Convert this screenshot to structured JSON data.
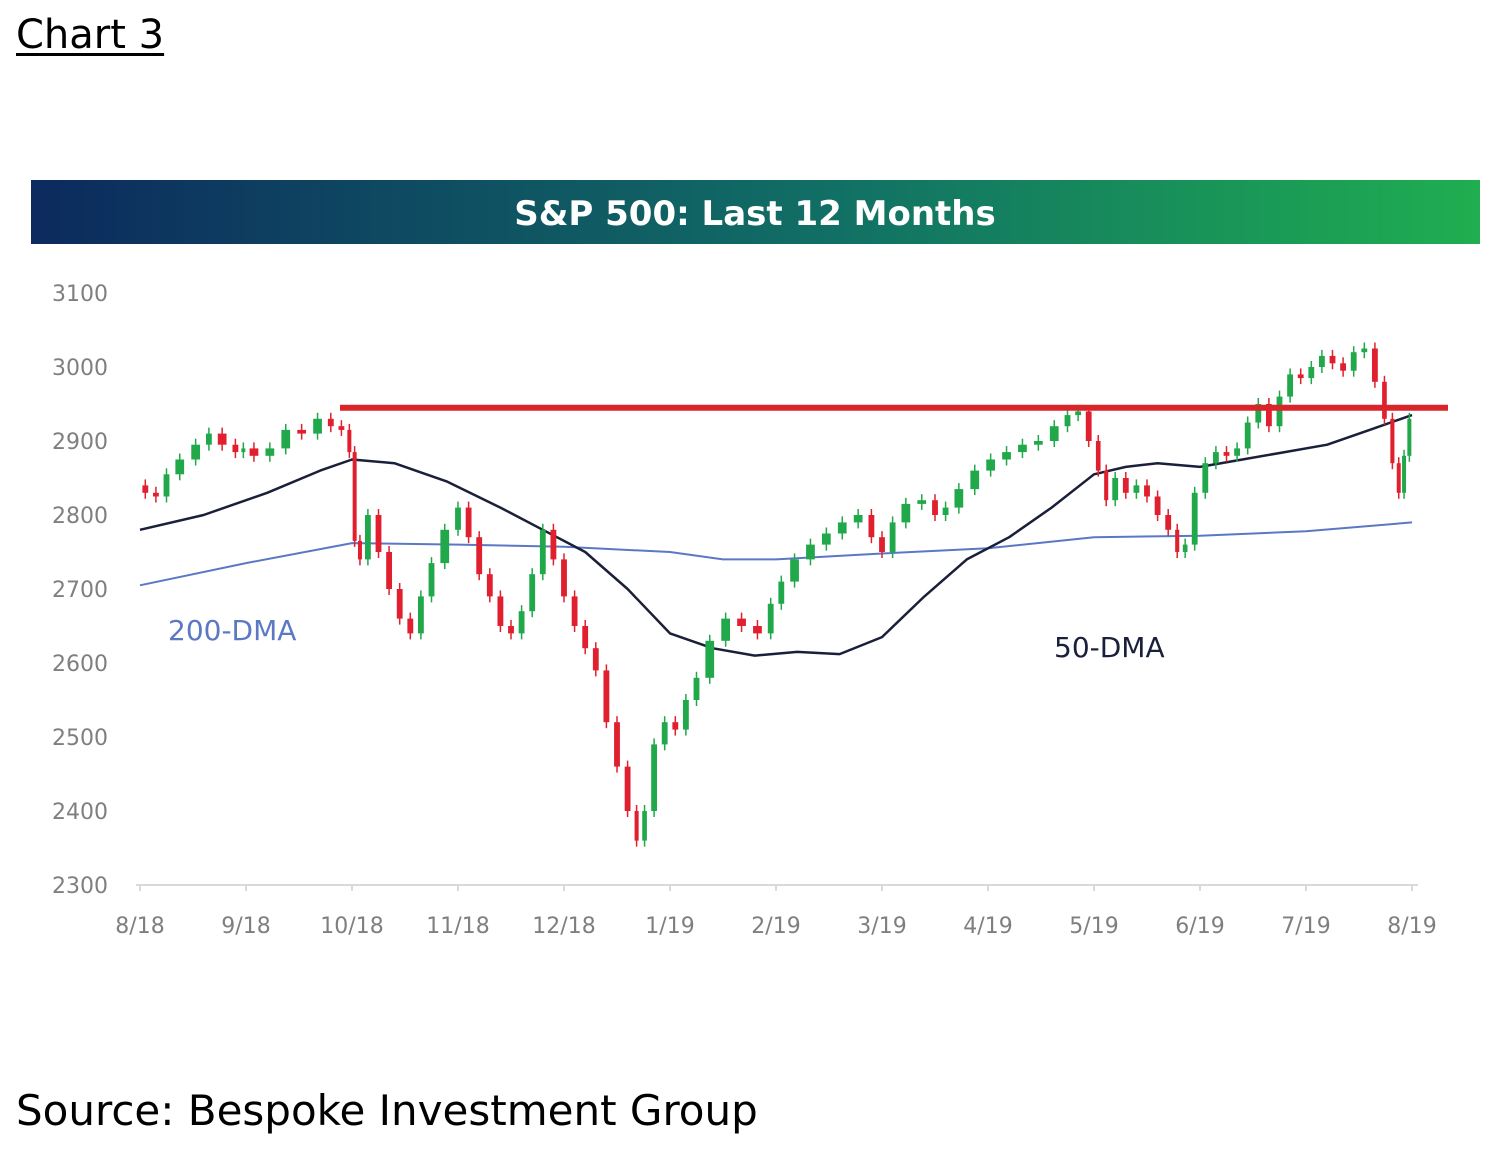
{
  "caption": "Chart 3",
  "source": "Source: Bespoke Investment Group",
  "chart_data": {
    "type": "candlestick",
    "title": "S&P 500: Last 12 Months",
    "xlabel": "",
    "ylabel": "",
    "ylim": [
      2300,
      3100
    ],
    "yticks": [
      2300,
      2400,
      2500,
      2600,
      2700,
      2800,
      2900,
      3000,
      3100
    ],
    "xticks": [
      "8/18",
      "9/18",
      "10/18",
      "11/18",
      "12/18",
      "1/19",
      "2/19",
      "3/19",
      "4/19",
      "5/19",
      "6/19",
      "7/19",
      "8/19"
    ],
    "grid": false,
    "legend": "none",
    "colors": {
      "up": "#21a84a",
      "down": "#e0202e",
      "ma50": "#1a1f3a",
      "ma200": "#5b78c5",
      "resistance": "#d9252a",
      "title_bar_left": "#0c2a5e",
      "title_bar_right": "#1fae50"
    },
    "resistance_line": {
      "value": 2945,
      "from": "10/18",
      "to": "8/19"
    },
    "annotations": [
      {
        "text": "200-DMA",
        "color": "#5b78c5"
      },
      {
        "text": "50-DMA",
        "color": "#1a1f3a"
      }
    ],
    "series": [
      {
        "name": "S&P 500",
        "closes": [
          {
            "x": 0.0,
            "y": 2840
          },
          {
            "x": 0.1,
            "y": 2830
          },
          {
            "x": 0.2,
            "y": 2825
          },
          {
            "x": 0.3,
            "y": 2855
          },
          {
            "x": 0.45,
            "y": 2875
          },
          {
            "x": 0.6,
            "y": 2895
          },
          {
            "x": 0.7,
            "y": 2910
          },
          {
            "x": 0.85,
            "y": 2895
          },
          {
            "x": 0.95,
            "y": 2885
          },
          {
            "x": 1.0,
            "y": 2890
          },
          {
            "x": 1.15,
            "y": 2880
          },
          {
            "x": 1.3,
            "y": 2890
          },
          {
            "x": 1.45,
            "y": 2915
          },
          {
            "x": 1.6,
            "y": 2910
          },
          {
            "x": 1.75,
            "y": 2930
          },
          {
            "x": 1.85,
            "y": 2920
          },
          {
            "x": 1.95,
            "y": 2915
          },
          {
            "x": 2.0,
            "y": 2885
          },
          {
            "x": 2.05,
            "y": 2765
          },
          {
            "x": 2.1,
            "y": 2740
          },
          {
            "x": 2.2,
            "y": 2800
          },
          {
            "x": 2.3,
            "y": 2750
          },
          {
            "x": 2.4,
            "y": 2700
          },
          {
            "x": 2.5,
            "y": 2660
          },
          {
            "x": 2.6,
            "y": 2640
          },
          {
            "x": 2.7,
            "y": 2690
          },
          {
            "x": 2.8,
            "y": 2735
          },
          {
            "x": 2.95,
            "y": 2780
          },
          {
            "x": 3.05,
            "y": 2810
          },
          {
            "x": 3.15,
            "y": 2770
          },
          {
            "x": 3.25,
            "y": 2720
          },
          {
            "x": 3.35,
            "y": 2690
          },
          {
            "x": 3.45,
            "y": 2650
          },
          {
            "x": 3.55,
            "y": 2640
          },
          {
            "x": 3.65,
            "y": 2670
          },
          {
            "x": 3.75,
            "y": 2720
          },
          {
            "x": 3.85,
            "y": 2780
          },
          {
            "x": 3.95,
            "y": 2740
          },
          {
            "x": 4.05,
            "y": 2690
          },
          {
            "x": 4.15,
            "y": 2650
          },
          {
            "x": 4.25,
            "y": 2620
          },
          {
            "x": 4.35,
            "y": 2590
          },
          {
            "x": 4.45,
            "y": 2520
          },
          {
            "x": 4.55,
            "y": 2460
          },
          {
            "x": 4.65,
            "y": 2400
          },
          {
            "x": 4.72,
            "y": 2360
          },
          {
            "x": 4.8,
            "y": 2400
          },
          {
            "x": 4.9,
            "y": 2490
          },
          {
            "x": 5.0,
            "y": 2520
          },
          {
            "x": 5.1,
            "y": 2510
          },
          {
            "x": 5.2,
            "y": 2550
          },
          {
            "x": 5.3,
            "y": 2580
          },
          {
            "x": 5.45,
            "y": 2630
          },
          {
            "x": 5.6,
            "y": 2660
          },
          {
            "x": 5.75,
            "y": 2650
          },
          {
            "x": 5.9,
            "y": 2640
          },
          {
            "x": 6.0,
            "y": 2680
          },
          {
            "x": 6.1,
            "y": 2710
          },
          {
            "x": 6.25,
            "y": 2740
          },
          {
            "x": 6.4,
            "y": 2760
          },
          {
            "x": 6.55,
            "y": 2775
          },
          {
            "x": 6.7,
            "y": 2790
          },
          {
            "x": 6.85,
            "y": 2800
          },
          {
            "x": 6.95,
            "y": 2770
          },
          {
            "x": 7.05,
            "y": 2750
          },
          {
            "x": 7.15,
            "y": 2790
          },
          {
            "x": 7.3,
            "y": 2815
          },
          {
            "x": 7.45,
            "y": 2820
          },
          {
            "x": 7.55,
            "y": 2800
          },
          {
            "x": 7.65,
            "y": 2810
          },
          {
            "x": 7.8,
            "y": 2835
          },
          {
            "x": 7.95,
            "y": 2860
          },
          {
            "x": 8.1,
            "y": 2875
          },
          {
            "x": 8.25,
            "y": 2885
          },
          {
            "x": 8.4,
            "y": 2895
          },
          {
            "x": 8.55,
            "y": 2900
          },
          {
            "x": 8.7,
            "y": 2920
          },
          {
            "x": 8.8,
            "y": 2935
          },
          {
            "x": 8.9,
            "y": 2940
          },
          {
            "x": 9.0,
            "y": 2900
          },
          {
            "x": 9.08,
            "y": 2860
          },
          {
            "x": 9.15,
            "y": 2820
          },
          {
            "x": 9.25,
            "y": 2850
          },
          {
            "x": 9.35,
            "y": 2830
          },
          {
            "x": 9.45,
            "y": 2840
          },
          {
            "x": 9.55,
            "y": 2825
          },
          {
            "x": 9.65,
            "y": 2800
          },
          {
            "x": 9.75,
            "y": 2780
          },
          {
            "x": 9.82,
            "y": 2750
          },
          {
            "x": 9.9,
            "y": 2760
          },
          {
            "x": 10.0,
            "y": 2830
          },
          {
            "x": 10.1,
            "y": 2870
          },
          {
            "x": 10.2,
            "y": 2885
          },
          {
            "x": 10.3,
            "y": 2880
          },
          {
            "x": 10.4,
            "y": 2890
          },
          {
            "x": 10.5,
            "y": 2925
          },
          {
            "x": 10.6,
            "y": 2950
          },
          {
            "x": 10.7,
            "y": 2920
          },
          {
            "x": 10.8,
            "y": 2960
          },
          {
            "x": 10.9,
            "y": 2990
          },
          {
            "x": 11.0,
            "y": 2985
          },
          {
            "x": 11.1,
            "y": 3000
          },
          {
            "x": 11.2,
            "y": 3015
          },
          {
            "x": 11.3,
            "y": 3005
          },
          {
            "x": 11.4,
            "y": 2995
          },
          {
            "x": 11.5,
            "y": 3020
          },
          {
            "x": 11.6,
            "y": 3025
          },
          {
            "x": 11.7,
            "y": 2980
          },
          {
            "x": 11.78,
            "y": 2930
          },
          {
            "x": 11.85,
            "y": 2870
          },
          {
            "x": 11.9,
            "y": 2830
          },
          {
            "x": 11.95,
            "y": 2880
          },
          {
            "x": 12.0,
            "y": 2930
          }
        ]
      },
      {
        "name": "50-DMA",
        "values": [
          {
            "x": 0.0,
            "y": 2780
          },
          {
            "x": 0.6,
            "y": 2800
          },
          {
            "x": 1.2,
            "y": 2830
          },
          {
            "x": 1.7,
            "y": 2860
          },
          {
            "x": 2.0,
            "y": 2875
          },
          {
            "x": 2.4,
            "y": 2870
          },
          {
            "x": 2.9,
            "y": 2845
          },
          {
            "x": 3.4,
            "y": 2810
          },
          {
            "x": 3.8,
            "y": 2780
          },
          {
            "x": 4.2,
            "y": 2750
          },
          {
            "x": 4.6,
            "y": 2700
          },
          {
            "x": 5.0,
            "y": 2640
          },
          {
            "x": 5.4,
            "y": 2620
          },
          {
            "x": 5.8,
            "y": 2610
          },
          {
            "x": 6.2,
            "y": 2615
          },
          {
            "x": 6.6,
            "y": 2612
          },
          {
            "x": 7.0,
            "y": 2635
          },
          {
            "x": 7.4,
            "y": 2690
          },
          {
            "x": 7.8,
            "y": 2740
          },
          {
            "x": 8.2,
            "y": 2770
          },
          {
            "x": 8.6,
            "y": 2810
          },
          {
            "x": 9.0,
            "y": 2855
          },
          {
            "x": 9.3,
            "y": 2865
          },
          {
            "x": 9.6,
            "y": 2870
          },
          {
            "x": 10.0,
            "y": 2865
          },
          {
            "x": 10.4,
            "y": 2875
          },
          {
            "x": 10.8,
            "y": 2885
          },
          {
            "x": 11.2,
            "y": 2895
          },
          {
            "x": 11.6,
            "y": 2915
          },
          {
            "x": 12.0,
            "y": 2935
          }
        ]
      },
      {
        "name": "200-DMA",
        "values": [
          {
            "x": 0.0,
            "y": 2705
          },
          {
            "x": 1.0,
            "y": 2735
          },
          {
            "x": 2.0,
            "y": 2762
          },
          {
            "x": 3.0,
            "y": 2760
          },
          {
            "x": 4.0,
            "y": 2757
          },
          {
            "x": 5.0,
            "y": 2750
          },
          {
            "x": 5.5,
            "y": 2740
          },
          {
            "x": 6.0,
            "y": 2740
          },
          {
            "x": 7.0,
            "y": 2748
          },
          {
            "x": 8.0,
            "y": 2755
          },
          {
            "x": 9.0,
            "y": 2770
          },
          {
            "x": 10.0,
            "y": 2772
          },
          {
            "x": 11.0,
            "y": 2778
          },
          {
            "x": 12.0,
            "y": 2790
          }
        ]
      }
    ]
  }
}
